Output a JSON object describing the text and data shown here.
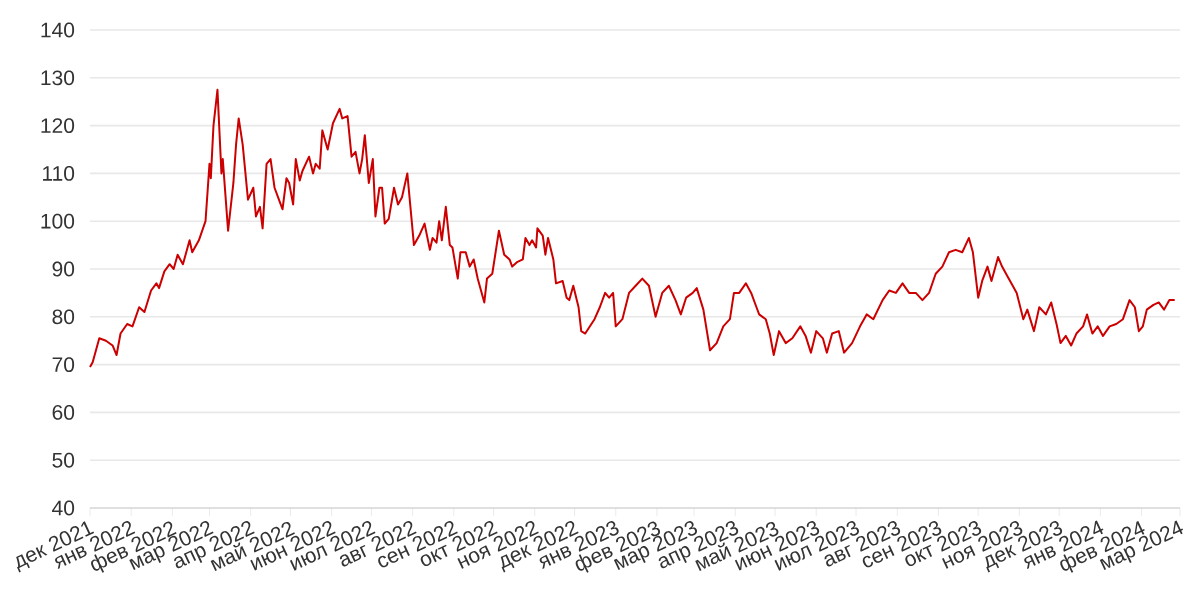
{
  "chart_data": {
    "type": "line",
    "x": [
      "2021-12-01",
      "2021-12-03",
      "2021-12-08",
      "2021-12-13",
      "2021-12-18",
      "2021-12-21",
      "2021-12-24",
      "2021-12-29",
      "2022-01-02",
      "2022-01-07",
      "2022-01-11",
      "2022-01-16",
      "2022-01-20",
      "2022-01-22",
      "2022-01-26",
      "2022-01-30",
      "2022-02-02",
      "2022-02-05",
      "2022-02-09",
      "2022-02-14",
      "2022-02-16",
      "2022-02-21",
      "2022-02-26",
      "2022-03-01",
      "2022-03-02",
      "2022-03-04",
      "2022-03-07",
      "2022-03-10",
      "2022-03-11",
      "2022-03-15",
      "2022-03-19",
      "2022-03-21",
      "2022-03-23",
      "2022-03-26",
      "2022-03-30",
      "2022-04-03",
      "2022-04-05",
      "2022-04-08",
      "2022-04-10",
      "2022-04-13",
      "2022-04-16",
      "2022-04-19",
      "2022-04-23",
      "2022-04-25",
      "2022-04-28",
      "2022-04-30",
      "2022-05-03",
      "2022-05-05",
      "2022-05-08",
      "2022-05-10",
      "2022-05-15",
      "2022-05-18",
      "2022-05-20",
      "2022-05-23",
      "2022-05-25",
      "2022-05-29",
      "2022-06-02",
      "2022-06-07",
      "2022-06-09",
      "2022-06-13",
      "2022-06-16",
      "2022-06-19",
      "2022-06-22",
      "2022-06-24",
      "2022-06-26",
      "2022-06-29",
      "2022-07-02",
      "2022-07-04",
      "2022-07-07",
      "2022-07-09",
      "2022-07-11",
      "2022-07-14",
      "2022-07-18",
      "2022-07-21",
      "2022-07-24",
      "2022-07-28",
      "2022-07-31",
      "2022-08-02",
      "2022-08-06",
      "2022-08-10",
      "2022-08-14",
      "2022-08-16",
      "2022-08-19",
      "2022-08-21",
      "2022-08-23",
      "2022-08-26",
      "2022-08-29",
      "2022-08-31",
      "2022-09-04",
      "2022-09-06",
      "2022-09-10",
      "2022-09-13",
      "2022-09-16",
      "2022-09-19",
      "2022-09-24",
      "2022-09-26",
      "2022-09-30",
      "2022-10-05",
      "2022-10-09",
      "2022-10-13",
      "2022-10-15",
      "2022-10-19",
      "2022-10-23",
      "2022-10-25",
      "2022-10-28",
      "2022-10-30",
      "2022-11-02",
      "2022-11-03",
      "2022-11-07",
      "2022-11-09",
      "2022-11-11",
      "2022-11-15",
      "2022-11-17",
      "2022-11-22",
      "2022-11-25",
      "2022-11-27",
      "2022-11-30",
      "2022-12-04",
      "2022-12-06",
      "2022-12-09",
      "2022-12-16",
      "2022-12-20",
      "2022-12-24",
      "2022-12-27",
      "2022-12-30",
      "2023-01-01",
      "2023-01-06",
      "2023-01-11",
      "2023-01-16",
      "2023-01-21",
      "2023-01-26",
      "2023-01-31",
      "2023-02-05",
      "2023-02-10",
      "2023-02-15",
      "2023-02-19",
      "2023-02-23",
      "2023-02-28",
      "2023-03-03",
      "2023-03-08",
      "2023-03-13",
      "2023-03-18",
      "2023-03-23",
      "2023-03-28",
      "2023-03-31",
      "2023-04-04",
      "2023-04-09",
      "2023-04-13",
      "2023-04-17",
      "2023-04-19",
      "2023-04-24",
      "2023-04-27",
      "2023-04-30",
      "2023-05-04",
      "2023-05-09",
      "2023-05-14",
      "2023-05-20",
      "2023-05-24",
      "2023-05-28",
      "2023-06-01",
      "2023-06-06",
      "2023-06-09",
      "2023-06-13",
      "2023-06-18",
      "2023-06-22",
      "2023-06-28",
      "2023-07-04",
      "2023-07-09",
      "2023-07-14",
      "2023-07-21",
      "2023-07-26",
      "2023-07-31",
      "2023-08-05",
      "2023-08-10",
      "2023-08-15",
      "2023-08-20",
      "2023-08-25",
      "2023-08-30",
      "2023-09-04",
      "2023-09-09",
      "2023-09-14",
      "2023-09-19",
      "2023-09-24",
      "2023-09-27",
      "2023-10-01",
      "2023-10-04",
      "2023-10-08",
      "2023-10-11",
      "2023-10-16",
      "2023-10-19",
      "2023-10-23",
      "2023-10-27",
      "2023-10-30",
      "2023-11-04",
      "2023-11-07",
      "2023-11-12",
      "2023-11-16",
      "2023-11-21",
      "2023-11-25",
      "2023-11-29",
      "2023-12-02",
      "2023-12-06",
      "2023-12-10",
      "2023-12-14",
      "2023-12-19",
      "2023-12-22",
      "2023-12-26",
      "2023-12-30",
      "2024-01-03",
      "2024-01-08",
      "2024-01-13",
      "2024-01-18",
      "2024-01-23",
      "2024-01-27",
      "2024-01-30",
      "2024-02-02",
      "2024-02-05",
      "2024-02-10",
      "2024-02-14",
      "2024-02-18",
      "2024-02-22",
      "2024-02-26"
    ],
    "series": [
      {
        "color": "#cc0000",
        "values": [
          69.5,
          70.5,
          75.5,
          75,
          74,
          72,
          76.5,
          78.5,
          78,
          82,
          81,
          85.5,
          87,
          86,
          89.5,
          91,
          90,
          93,
          91,
          96,
          93.5,
          96,
          100,
          112,
          109,
          120,
          127.5,
          110,
          113,
          98,
          108,
          116,
          121.5,
          116,
          104.5,
          107,
          101,
          103,
          98.5,
          112,
          113,
          107,
          104,
          102.5,
          109,
          108,
          103.5,
          113,
          108.5,
          110.5,
          113.5,
          110,
          112,
          111,
          119,
          115,
          120.5,
          123.5,
          121.5,
          122,
          113.5,
          114.5,
          110,
          113,
          118,
          108,
          113,
          101,
          107,
          107,
          99.5,
          100.5,
          107,
          103.5,
          105,
          110,
          101,
          95,
          97,
          99.5,
          94,
          96.5,
          95.5,
          100,
          96,
          103,
          95,
          94.5,
          88,
          93.5,
          93.5,
          90.5,
          92,
          88,
          83,
          88,
          89,
          98,
          93,
          92,
          90.5,
          91.5,
          92,
          96.5,
          95,
          96,
          94.5,
          98.5,
          97,
          93,
          96.5,
          92,
          87,
          87.5,
          84,
          83.5,
          86.5,
          82,
          77,
          76.5,
          79.5,
          82,
          85,
          84,
          85,
          78,
          79.5,
          85,
          86.5,
          88,
          86.5,
          80,
          85,
          86.5,
          83.5,
          80.5,
          84,
          85,
          86,
          81.5,
          73,
          74.5,
          78,
          79.5,
          85,
          85,
          87,
          85,
          82,
          80.5,
          79.5,
          76.5,
          72,
          77,
          74.5,
          75.5,
          78,
          76,
          72.5,
          77,
          75.5,
          72.5,
          76.5,
          77,
          72.5,
          74.5,
          78,
          80.5,
          79.5,
          83.5,
          85.5,
          85,
          87,
          85,
          85,
          83.5,
          85,
          89,
          90.5,
          93.5,
          94,
          93.5,
          96.5,
          93.5,
          84,
          87.5,
          90.5,
          87.5,
          92.5,
          90.5,
          88.5,
          86.5,
          85,
          79.5,
          81.5,
          77,
          82,
          80.5,
          83,
          78.5,
          74.5,
          76,
          74,
          76.5,
          78,
          80.5,
          76.5,
          78,
          76,
          78,
          78.5,
          79.5,
          83.5,
          82,
          77,
          78,
          81.5,
          82.5,
          83,
          81.5,
          83.5,
          83.5
        ]
      }
    ],
    "xlim": [
      "2021-12-01",
      "2024-03-01"
    ],
    "xticks": [
      {
        "value": "2021-12",
        "label": "дек 2021"
      },
      {
        "value": "2022-01",
        "label": "янв 2022"
      },
      {
        "value": "2022-02",
        "label": "фев 2022"
      },
      {
        "value": "2022-03",
        "label": "мар 2022"
      },
      {
        "value": "2022-04",
        "label": "апр 2022"
      },
      {
        "value": "2022-05",
        "label": "май 2022"
      },
      {
        "value": "2022-06",
        "label": "июн 2022"
      },
      {
        "value": "2022-07",
        "label": "июл 2022"
      },
      {
        "value": "2022-08",
        "label": "авг 2022"
      },
      {
        "value": "2022-09",
        "label": "сен 2022"
      },
      {
        "value": "2022-10",
        "label": "окт 2022"
      },
      {
        "value": "2022-11",
        "label": "ноя 2022"
      },
      {
        "value": "2022-12",
        "label": "дек 2022"
      },
      {
        "value": "2023-01",
        "label": "янв 2023"
      },
      {
        "value": "2023-02",
        "label": "фев 2023"
      },
      {
        "value": "2023-03",
        "label": "мар 2023"
      },
      {
        "value": "2023-04",
        "label": "апр 2023"
      },
      {
        "value": "2023-05",
        "label": "май 2023"
      },
      {
        "value": "2023-06",
        "label": "июн 2023"
      },
      {
        "value": "2023-07",
        "label": "июл 2023"
      },
      {
        "value": "2023-08",
        "label": "авг 2023"
      },
      {
        "value": "2023-09",
        "label": "сен 2023"
      },
      {
        "value": "2023-10",
        "label": "окт 2023"
      },
      {
        "value": "2023-11",
        "label": "ноя 2023"
      },
      {
        "value": "2023-12",
        "label": "дек 2023"
      },
      {
        "value": "2024-01",
        "label": "янв 2024"
      },
      {
        "value": "2024-02",
        "label": "фев 2024"
      },
      {
        "value": "2024-03",
        "label": "мар 2024"
      }
    ],
    "ylim": [
      40,
      140
    ],
    "yticks": [
      40,
      50,
      60,
      70,
      80,
      90,
      100,
      110,
      120,
      130,
      140
    ],
    "grid": "y",
    "marker": "none",
    "line_style": "solid"
  }
}
